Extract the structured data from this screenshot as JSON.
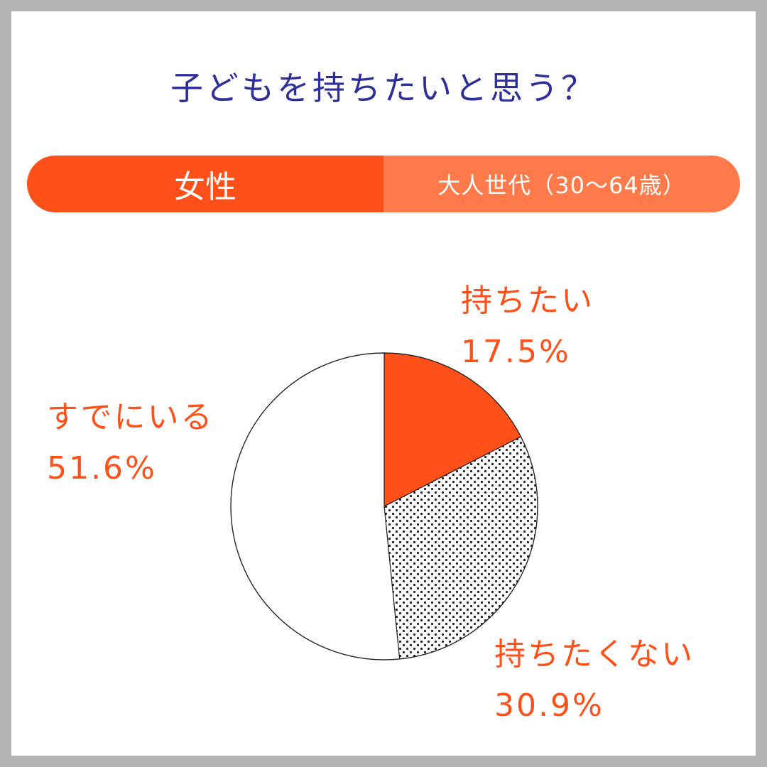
{
  "title": "子どもを持ちたいと思う？",
  "banner": {
    "left_label": "女性",
    "right_label": "大人世代（30〜64歳）"
  },
  "colors": {
    "title": "#2e2f99",
    "accent": "#ff5019",
    "accent_light": "#ff7a4a",
    "label": "#ff5019"
  },
  "chart_data": {
    "type": "pie",
    "start": "top",
    "direction": "clockwise",
    "slices": [
      {
        "label": "持ちたい",
        "value": 17.5,
        "value_text": "17.5%",
        "fill": "solid"
      },
      {
        "label": "持ちたくない",
        "value": 30.9,
        "value_text": "30.9%",
        "fill": "dotted"
      },
      {
        "label": "すでにいる",
        "value": 51.6,
        "value_text": "51.6%",
        "fill": "white"
      }
    ]
  }
}
